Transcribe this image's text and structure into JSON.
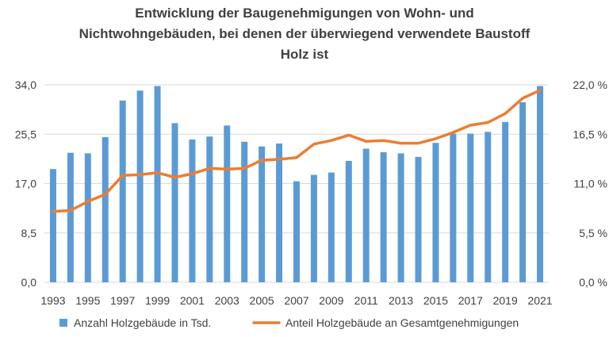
{
  "chart_data": {
    "type": "bar+line",
    "title_lines": [
      "Entwicklung der Baugenehmigungen von Wohn- und",
      "Nichtwohngebäuden, bei denen der überwiegend verwendete Baustoff",
      "Holz ist"
    ],
    "years": [
      1993,
      1994,
      1995,
      1996,
      1997,
      1998,
      1999,
      2000,
      2001,
      2002,
      2003,
      2004,
      2005,
      2006,
      2007,
      2008,
      2009,
      2010,
      2011,
      2012,
      2013,
      2014,
      2015,
      2016,
      2017,
      2018,
      2019,
      2020,
      2021
    ],
    "x_tick_labels": [
      "1993",
      "1995",
      "1997",
      "1999",
      "2001",
      "2003",
      "2005",
      "2007",
      "2009",
      "2011",
      "2013",
      "2015",
      "2017",
      "2019",
      "2021"
    ],
    "y_left": {
      "min": 0,
      "max": 34,
      "ticks": [
        0,
        8.5,
        17,
        25.5,
        34
      ],
      "tick_labels": [
        "0,0",
        "8,5",
        "17,0",
        "25,5",
        "34,0"
      ]
    },
    "y_right": {
      "min": 0,
      "max": 22,
      "ticks": [
        0,
        5.5,
        11,
        16.5,
        22
      ],
      "tick_labels": [
        "0,0 %",
        "5,5 %",
        "11,0 %",
        "16,5 %",
        "22,0 %"
      ]
    },
    "grid": true,
    "legend_position": "bottom",
    "series": [
      {
        "name": "Anzahl Holzgebäude in Tsd.",
        "kind": "bar",
        "axis": "left",
        "color": "#5B9BD5",
        "values": [
          19.5,
          22.3,
          22.2,
          25.0,
          31.3,
          33.0,
          33.8,
          27.4,
          24.6,
          25.1,
          27.0,
          24.2,
          23.4,
          23.9,
          17.4,
          18.5,
          18.9,
          20.9,
          23.0,
          22.4,
          22.2,
          21.6,
          24.0,
          25.6,
          25.6,
          25.9,
          27.6,
          31.0,
          33.8
        ]
      },
      {
        "name": "Anteil Holzgebäude an Gesamtgenehmigungen",
        "kind": "line",
        "axis": "right",
        "color": "#ED7D31",
        "values": [
          7.9,
          8.0,
          9.0,
          9.8,
          11.9,
          12.0,
          12.2,
          11.7,
          12.1,
          12.7,
          12.6,
          12.7,
          13.6,
          13.7,
          13.9,
          15.4,
          15.8,
          16.4,
          15.7,
          15.8,
          15.5,
          15.5,
          16.0,
          16.7,
          17.5,
          17.8,
          18.8,
          20.5,
          21.4
        ]
      }
    ]
  }
}
